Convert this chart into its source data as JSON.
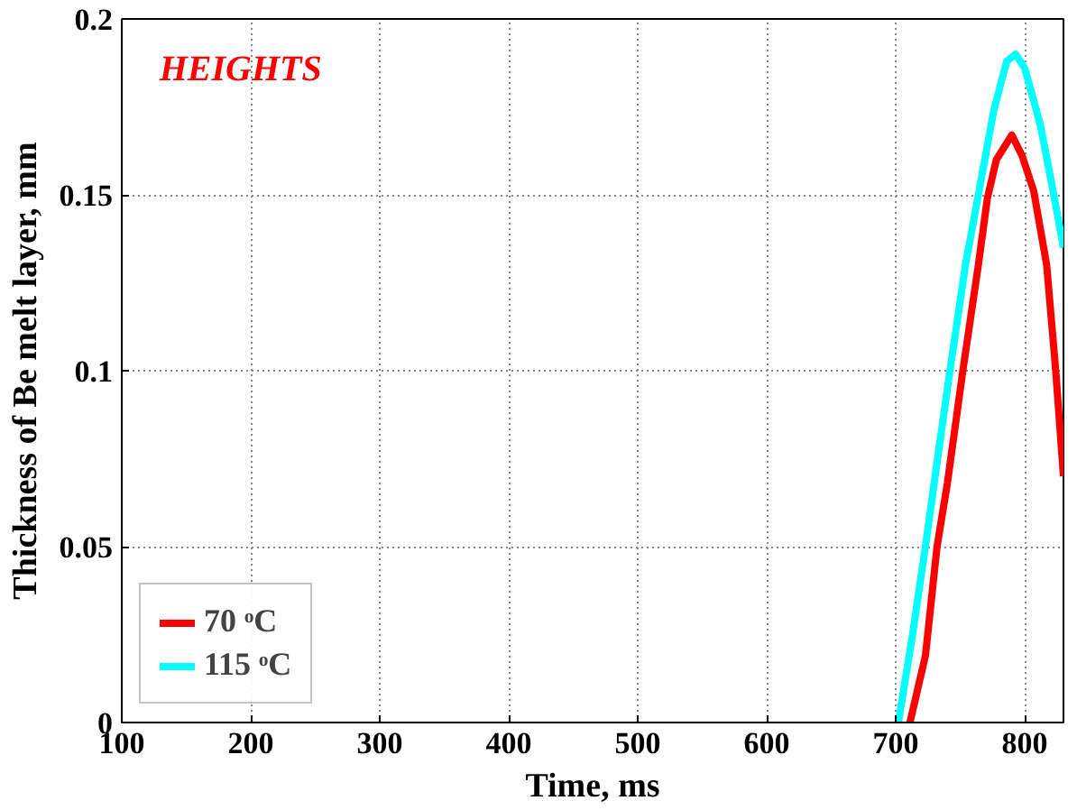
{
  "chart_data": {
    "type": "line",
    "xlabel": "Time, ms",
    "ylabel": "Thickness of Be melt layer, mm",
    "annotations": [
      "HEIGHTS"
    ],
    "xlim": [
      100,
      830
    ],
    "ylim": [
      0,
      0.2
    ],
    "xticks": [
      100,
      200,
      300,
      400,
      500,
      600,
      700,
      800
    ],
    "yticks": [
      0,
      0.05,
      0.1,
      0.15,
      0.2
    ],
    "grid": true,
    "legend": "bottom left",
    "line_style": "solid",
    "marker": "none",
    "series": [
      {
        "name": "70 ᵒC",
        "color": "#ff0000",
        "x": [
          711,
          723,
          732,
          740,
          752,
          764,
          771,
          778,
          790,
          798,
          807,
          817,
          824,
          830
        ],
        "values": [
          0,
          0.019,
          0.05,
          0.068,
          0.1,
          0.13,
          0.149,
          0.16,
          0.167,
          0.161,
          0.151,
          0.13,
          0.1,
          0.07
        ]
      },
      {
        "name": "115 ᵒC",
        "color": "#00ffff",
        "x": [
          702,
          713,
          723,
          732,
          742,
          754,
          766,
          776,
          786,
          793,
          800,
          812,
          822,
          830
        ],
        "values": [
          0,
          0.025,
          0.05,
          0.074,
          0.1,
          0.13,
          0.154,
          0.174,
          0.188,
          0.19,
          0.186,
          0.17,
          0.151,
          0.135
        ]
      }
    ]
  }
}
